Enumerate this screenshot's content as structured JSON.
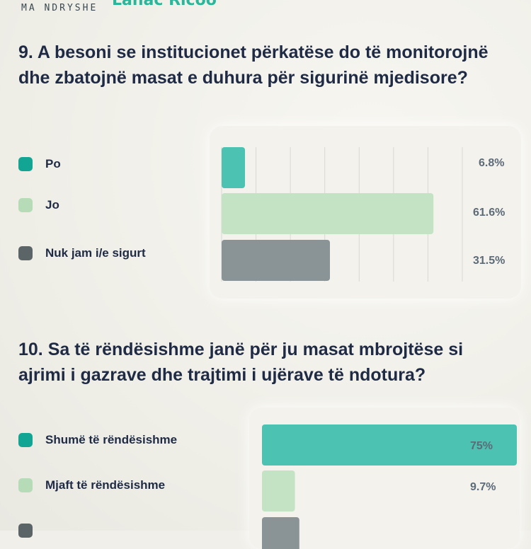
{
  "header": {
    "brand": "MA NDRYSHE",
    "title": "Lanac Ricoo"
  },
  "colors": {
    "teal": "#4cc3b2",
    "light_green": "#c4e3c4",
    "gray": "#8a9497",
    "dark_gray": "#5b6466"
  },
  "questions": [
    {
      "title": "9. A besoni se institucionet përkatëse do të monitorojnë dhe zbatojnë masat e duhura për sigurinë mjedisore?",
      "legend": [
        {
          "label": "Po",
          "swatch": "#12a594"
        },
        {
          "label": "Jo",
          "swatch": "#b6dcb7"
        },
        {
          "label": "Nuk jam i/e sigurt",
          "swatch": "#5b6466"
        }
      ]
    },
    {
      "title": "10. Sa të rëndësishme janë për ju masat mbrojtëse si ajrimi i gazrave dhe trajtimi i ujërave të ndotura?",
      "legend": [
        {
          "label": "Shumë të rëndësishme",
          "swatch": "#12a594"
        },
        {
          "label": "Mjaft të rëndësishme",
          "swatch": "#b6dcb7"
        },
        {
          "label": "",
          "swatch": "#5b6466"
        }
      ]
    }
  ],
  "chart_data": [
    {
      "type": "bar",
      "orientation": "horizontal",
      "categories": [
        "Po",
        "Jo",
        "Nuk jam i/e sigurt"
      ],
      "values": [
        6.8,
        61.6,
        31.5
      ],
      "value_labels": [
        "6.8%",
        "61.6%",
        "31.5%"
      ],
      "bar_colors": [
        "#4cc3b2",
        "#c4e3c4",
        "#8a9497"
      ],
      "xlim": [
        0,
        70
      ],
      "grid": true
    },
    {
      "type": "bar",
      "orientation": "horizontal",
      "categories": [
        "Shumë të rëndësishme",
        "Mjaft të rëndësishme",
        ""
      ],
      "values": [
        75,
        9.7,
        11
      ],
      "value_labels": [
        "75%",
        "9.7%",
        ""
      ],
      "bar_colors": [
        "#4cc3b2",
        "#c4e3c4",
        "#8a9497"
      ],
      "xlim": [
        0,
        75
      ],
      "grid": false
    }
  ]
}
